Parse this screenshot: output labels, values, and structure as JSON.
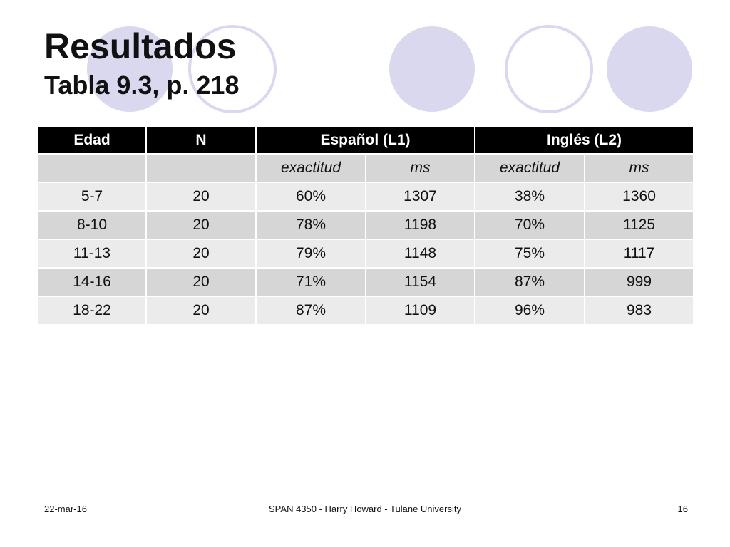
{
  "slide": {
    "title": "Resultados",
    "subtitle": "Tabla 9.3, p. 218"
  },
  "table": {
    "headers": [
      "Edad",
      "N",
      "Español (L1)",
      "Inglés (L2)"
    ],
    "subheaders": [
      "",
      "",
      "exactitud",
      "ms",
      "exactitud",
      "ms"
    ],
    "rows": [
      [
        "5-7",
        "20",
        "60%",
        "1307",
        "38%",
        "1360"
      ],
      [
        "8-10",
        "20",
        "78%",
        "1198",
        "70%",
        "1125"
      ],
      [
        "11-13",
        "20",
        "79%",
        "1148",
        "75%",
        "1117"
      ],
      [
        "14-16",
        "20",
        "71%",
        "1154",
        "87%",
        "999"
      ],
      [
        "18-22",
        "20",
        "87%",
        "1109",
        "96%",
        "983"
      ]
    ]
  },
  "footer": {
    "date": "22-mar-16",
    "course": "SPAN 4350 - Harry Howard - Tulane University",
    "page": "16"
  },
  "colors": {
    "circle_fill": "#d9d8ee",
    "circle_stroke": "#d9d8ee",
    "header_bg": "#000000",
    "row_light": "#ebebeb",
    "row_dark": "#d6d6d6"
  }
}
